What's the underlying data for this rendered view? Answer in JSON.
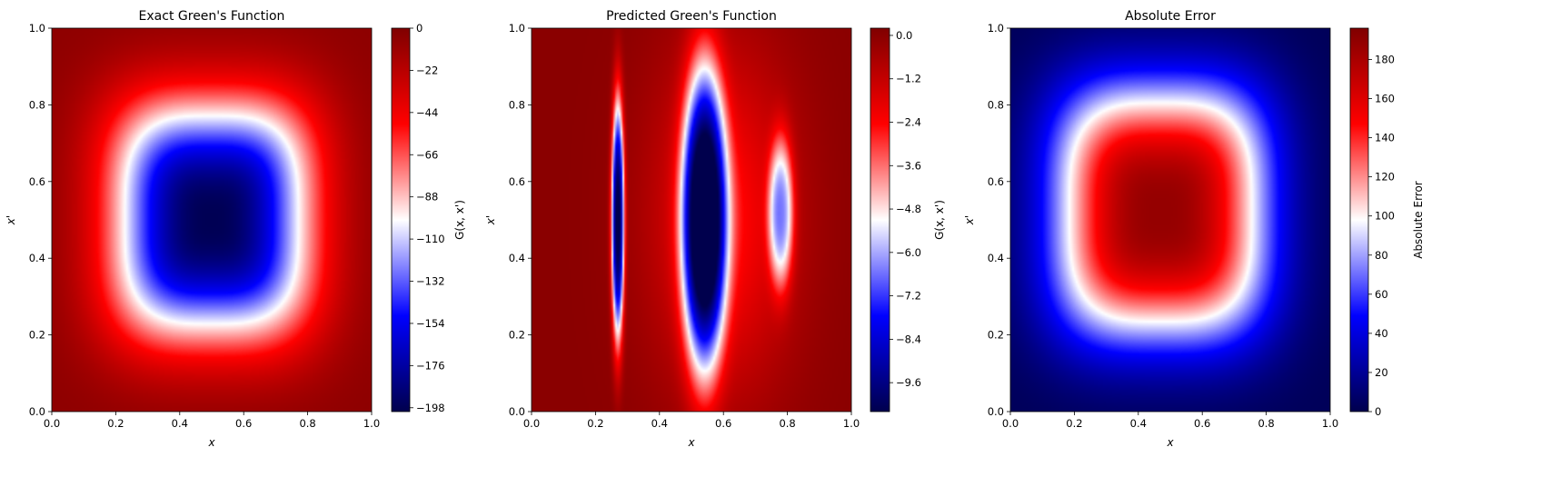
{
  "chart_data": [
    {
      "type": "heatmap",
      "title": "Exact Green's Function",
      "xlabel": "x",
      "ylabel": "x'",
      "xlim": [
        0,
        1
      ],
      "ylim": [
        0,
        1
      ],
      "x_ticks": [
        "0.0",
        "0.2",
        "0.4",
        "0.6",
        "0.8",
        "1.0"
      ],
      "y_ticks": [
        "0.0",
        "0.2",
        "0.4",
        "0.6",
        "0.8",
        "1.0"
      ],
      "colormap": "seismic",
      "field": {
        "kind": "round_well",
        "center": [
          0.5,
          0.5
        ],
        "min_value": -198,
        "edge_value": -5
      },
      "colorbar": {
        "label": "G(x, x')",
        "range": [
          -200,
          0
        ],
        "ticks": [
          "0",
          "−22",
          "−44",
          "−66",
          "−88",
          "−110",
          "−132",
          "−154",
          "−176",
          "−198"
        ],
        "tick_values": [
          0,
          -22,
          -44,
          -66,
          -88,
          -110,
          -132,
          -154,
          -176,
          -198
        ]
      }
    },
    {
      "type": "heatmap",
      "title": "Predicted Green's Function",
      "xlabel": "x",
      "ylabel": "x'",
      "xlim": [
        0,
        1
      ],
      "ylim": [
        0,
        1
      ],
      "x_ticks": [
        "0.0",
        "0.2",
        "0.4",
        "0.6",
        "0.8",
        "1.0"
      ],
      "y_ticks": [
        "0.0",
        "0.2",
        "0.4",
        "0.6",
        "0.8",
        "1.0"
      ],
      "colormap": "seismic",
      "field": {
        "kind": "lobes",
        "lobes": [
          {
            "center": [
              0.27,
              0.5
            ],
            "x_halfwidth": 0.02,
            "y_halfwidth": 0.32,
            "min_value": -10.4
          },
          {
            "center": [
              0.54,
              0.5
            ],
            "x_halfwidth": 0.07,
            "y_halfwidth": 0.4,
            "min_value": -10.4
          },
          {
            "center": [
              0.78,
              0.52
            ],
            "x_halfwidth": 0.04,
            "y_halfwidth": 0.2,
            "min_value": -5.2
          }
        ],
        "background_value": 0
      },
      "colorbar": {
        "label": "G(x, x')",
        "range": [
          -10.4,
          0.2
        ],
        "ticks": [
          "0.0",
          "−1.2",
          "−2.4",
          "−3.6",
          "−4.8",
          "−6.0",
          "−7.2",
          "−8.4",
          "−9.6"
        ],
        "tick_values": [
          0,
          -1.2,
          -2.4,
          -3.6,
          -4.8,
          -6.0,
          -7.2,
          -8.4,
          -9.6
        ]
      }
    },
    {
      "type": "heatmap",
      "title": "Absolute Error",
      "xlabel": "x",
      "ylabel": "x'",
      "xlim": [
        0,
        1
      ],
      "ylim": [
        0,
        1
      ],
      "x_ticks": [
        "0.0",
        "0.2",
        "0.4",
        "0.6",
        "0.8",
        "1.0"
      ],
      "y_ticks": [
        "0.0",
        "0.2",
        "0.4",
        "0.6",
        "0.8",
        "1.0"
      ],
      "colormap": "seismic",
      "field": {
        "kind": "round_peak",
        "center": [
          0.47,
          0.52
        ],
        "max_value": 188,
        "edge_value": 3
      },
      "colorbar": {
        "label": "Absolute Error",
        "range": [
          0,
          196
        ],
        "ticks": [
          "180",
          "160",
          "140",
          "120",
          "100",
          "80",
          "60",
          "40",
          "20",
          "0"
        ],
        "tick_values": [
          180,
          160,
          140,
          120,
          100,
          80,
          60,
          40,
          20,
          0
        ]
      }
    }
  ]
}
